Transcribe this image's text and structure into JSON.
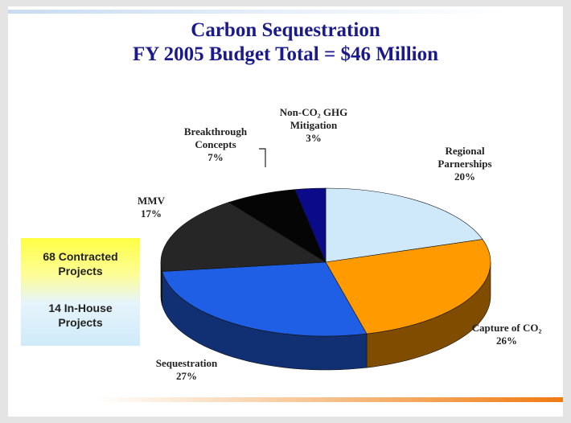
{
  "chart_data": {
    "type": "pie",
    "title": "Carbon Sequestration",
    "subtitle": "FY 2005 Budget Total = $46 Million",
    "categories": [
      "Regional Parnerships",
      "Capture of CO₂",
      "Sequestration",
      "MMV",
      "Breakthrough Concepts",
      "Non-CO₂ GHG Mitigation"
    ],
    "values": [
      20,
      26,
      27,
      17,
      7,
      3
    ],
    "value_labels": [
      "20%",
      "26%",
      "27%",
      "17%",
      "7%",
      "3%"
    ],
    "colors": [
      "#cfe9fb",
      "#ff9a00",
      "#1f5fe6",
      "#262626",
      "#050505",
      "#0b0b8a"
    ]
  },
  "side_box": {
    "items": [
      "68 Contracted Projects",
      "14 In-House Projects"
    ]
  }
}
